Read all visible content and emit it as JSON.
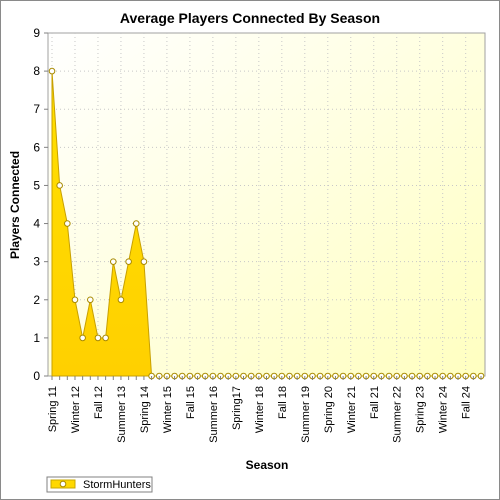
{
  "chart_data": {
    "type": "area",
    "title": "Average Players Connected By Season",
    "xlabel": "Season",
    "ylabel": "Players Connected",
    "ylim": [
      0,
      9
    ],
    "yticks": [
      0,
      1,
      2,
      3,
      4,
      5,
      6,
      7,
      8,
      9
    ],
    "grid": true,
    "legend_position": "bottom-left",
    "x_tick_labels": [
      "Spring 11",
      "Winter 12",
      "Fall 12",
      "Summer 13",
      "Spring 14",
      "Winter 15",
      "Fall 15",
      "Summer 16",
      "Spring17",
      "Winter 18",
      "Fall 18",
      "Summer 19",
      "Spring 20",
      "Winter 21",
      "Fall 21",
      "Summer 22",
      "Spring 23",
      "Winter 24",
      "Fall 24"
    ],
    "series": [
      {
        "name": "StormHunters",
        "color": "#ffd800",
        "values": [
          8,
          5,
          4,
          2,
          1,
          2,
          1,
          1,
          3,
          2,
          3,
          4,
          3,
          0,
          0,
          0,
          0,
          0,
          0,
          0,
          0,
          0,
          0,
          0,
          0,
          0,
          0,
          0,
          0,
          0,
          0,
          0,
          0,
          0,
          0,
          0,
          0,
          0,
          0,
          0,
          0,
          0,
          0,
          0,
          0,
          0,
          0,
          0,
          0,
          0,
          0,
          0,
          0,
          0,
          0,
          0,
          0
        ]
      }
    ]
  }
}
